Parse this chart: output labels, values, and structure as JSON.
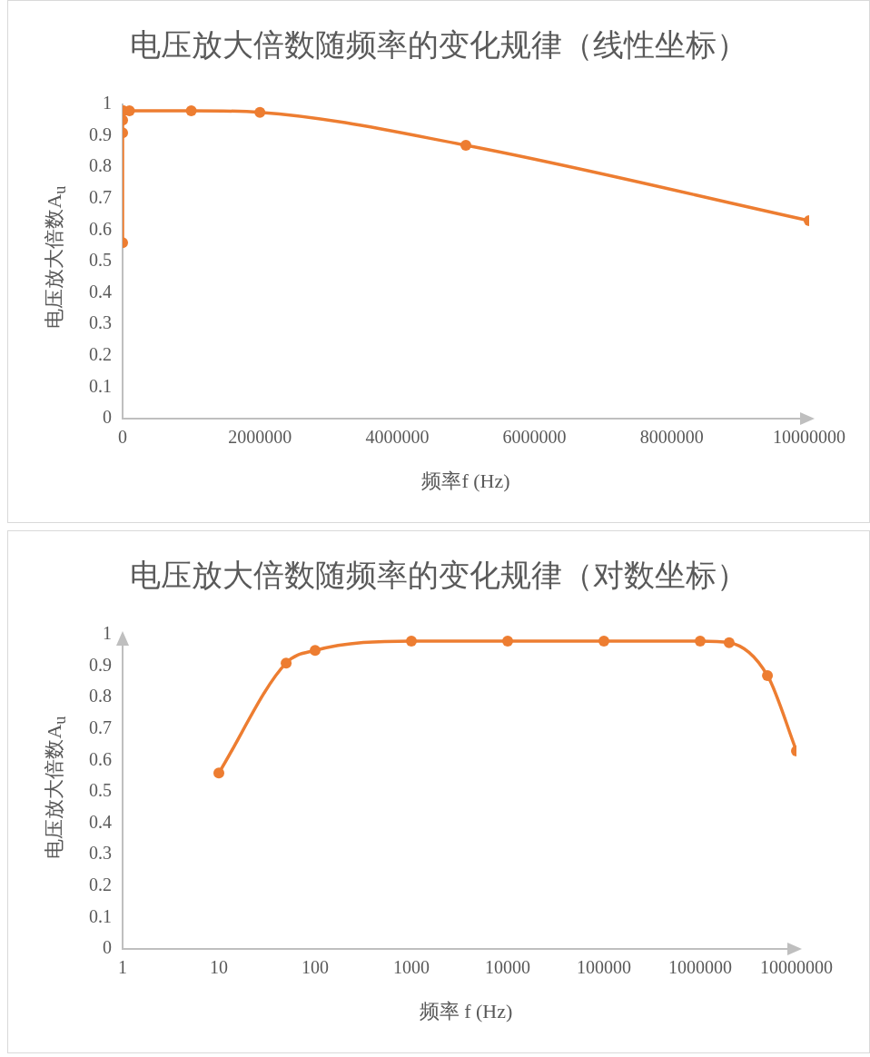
{
  "chart_data": [
    {
      "type": "line",
      "title": "电压放大倍数随频率的变化规律（线性坐标）",
      "xlabel": "频率f (Hz)",
      "ylabel": "电压放大倍数A$_{u}$",
      "x": [
        10,
        50,
        100,
        1000,
        10000,
        100000,
        1000000,
        2000000,
        5000000,
        10000000
      ],
      "series": [
        {
          "color": "#ed7d31",
          "values": [
            0.56,
            0.91,
            0.95,
            0.98,
            0.98,
            0.98,
            0.98,
            0.975,
            0.87,
            0.63
          ]
        }
      ],
      "xlim": [
        0,
        10000000
      ],
      "xticks": [
        0,
        2000000,
        4000000,
        6000000,
        8000000,
        10000000
      ],
      "ylim": [
        0,
        1
      ],
      "yticks": [
        0,
        0.1,
        0.2,
        0.3,
        0.4,
        0.5,
        0.6,
        0.7,
        0.8,
        0.9,
        1
      ],
      "marker": "circle"
    },
    {
      "type": "line",
      "title": "电压放大倍数随频率的变化规律（对数坐标）",
      "xlabel": "频率 f (Hz)",
      "ylabel": "电压放大倍数A$_{u}$",
      "x": [
        10,
        50,
        100,
        1000,
        10000,
        100000,
        1000000,
        2000000,
        5000000,
        10000000
      ],
      "series": [
        {
          "color": "#ed7d31",
          "values": [
            0.56,
            0.91,
            0.95,
            0.98,
            0.98,
            0.98,
            0.98,
            0.975,
            0.87,
            0.63
          ]
        }
      ],
      "xlim": [
        1,
        10000000
      ],
      "xticks": [
        1,
        10,
        100,
        1000,
        10000,
        100000,
        1000000,
        10000000
      ],
      "ylim": [
        0,
        1
      ],
      "yticks": [
        0,
        0.1,
        0.2,
        0.3,
        0.4,
        0.5,
        0.6,
        0.7,
        0.8,
        0.9,
        1
      ],
      "marker": "circle",
      "log": "x"
    }
  ]
}
